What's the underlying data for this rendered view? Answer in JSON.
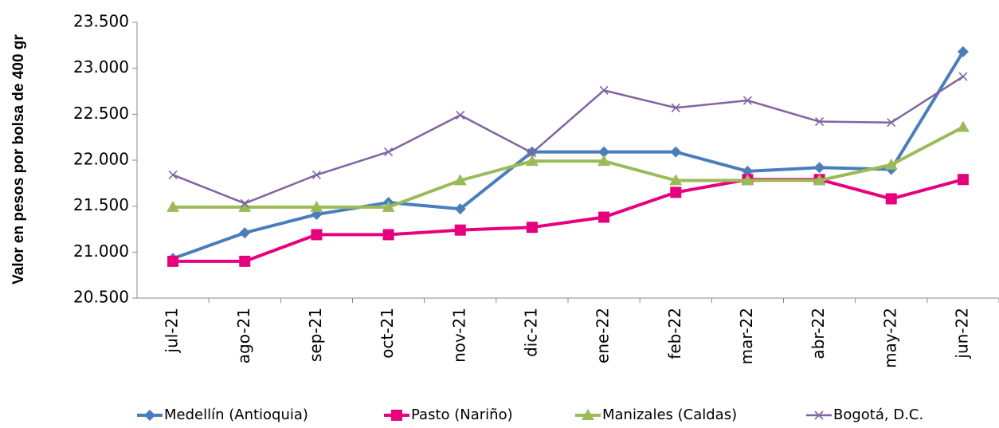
{
  "chart_data": {
    "type": "line",
    "y_label": "Valor en pesos por bolsa de 400 gr",
    "categories": [
      "jul-21",
      "ago-21",
      "sep-21",
      "oct-21",
      "nov-21",
      "dic-21",
      "ene-22",
      "feb-22",
      "mar-22",
      "abr-22",
      "may-22",
      "jun-22"
    ],
    "ylim": [
      20500,
      23500
    ],
    "yticks": [
      {
        "value": 20500,
        "label": "20.500"
      },
      {
        "value": 21000,
        "label": "21.000"
      },
      {
        "value": 21500,
        "label": "21.500"
      },
      {
        "value": 22000,
        "label": "22.000"
      },
      {
        "value": 22500,
        "label": "22.500"
      },
      {
        "value": 23000,
        "label": "23.000"
      },
      {
        "value": 23500,
        "label": "23.500"
      }
    ],
    "legend": "bottom",
    "series": [
      {
        "name": "Medellín (Antioquia)",
        "color": "#4a7ebb",
        "marker": "diamond",
        "values": [
          20930,
          21210,
          21410,
          21540,
          21470,
          22090,
          22090,
          22090,
          21880,
          21920,
          21900,
          23180
        ]
      },
      {
        "name": "Pasto (Nariño)",
        "color": "#e6007e",
        "marker": "square",
        "values": [
          20900,
          20900,
          21190,
          21190,
          21240,
          21270,
          21380,
          21650,
          21790,
          21790,
          21580,
          21790
        ]
      },
      {
        "name": "Manizales (Caldas)",
        "color": "#9bbb59",
        "marker": "triangle",
        "values": [
          21490,
          21490,
          21490,
          21490,
          21780,
          21990,
          21990,
          21780,
          21780,
          21780,
          21950,
          22360
        ]
      },
      {
        "name": "Bogotá, D.C.",
        "color": "#8064a2",
        "marker": "x",
        "values": [
          21840,
          21530,
          21840,
          22090,
          22490,
          22080,
          22760,
          22570,
          22650,
          22420,
          22410,
          22910
        ]
      }
    ]
  }
}
